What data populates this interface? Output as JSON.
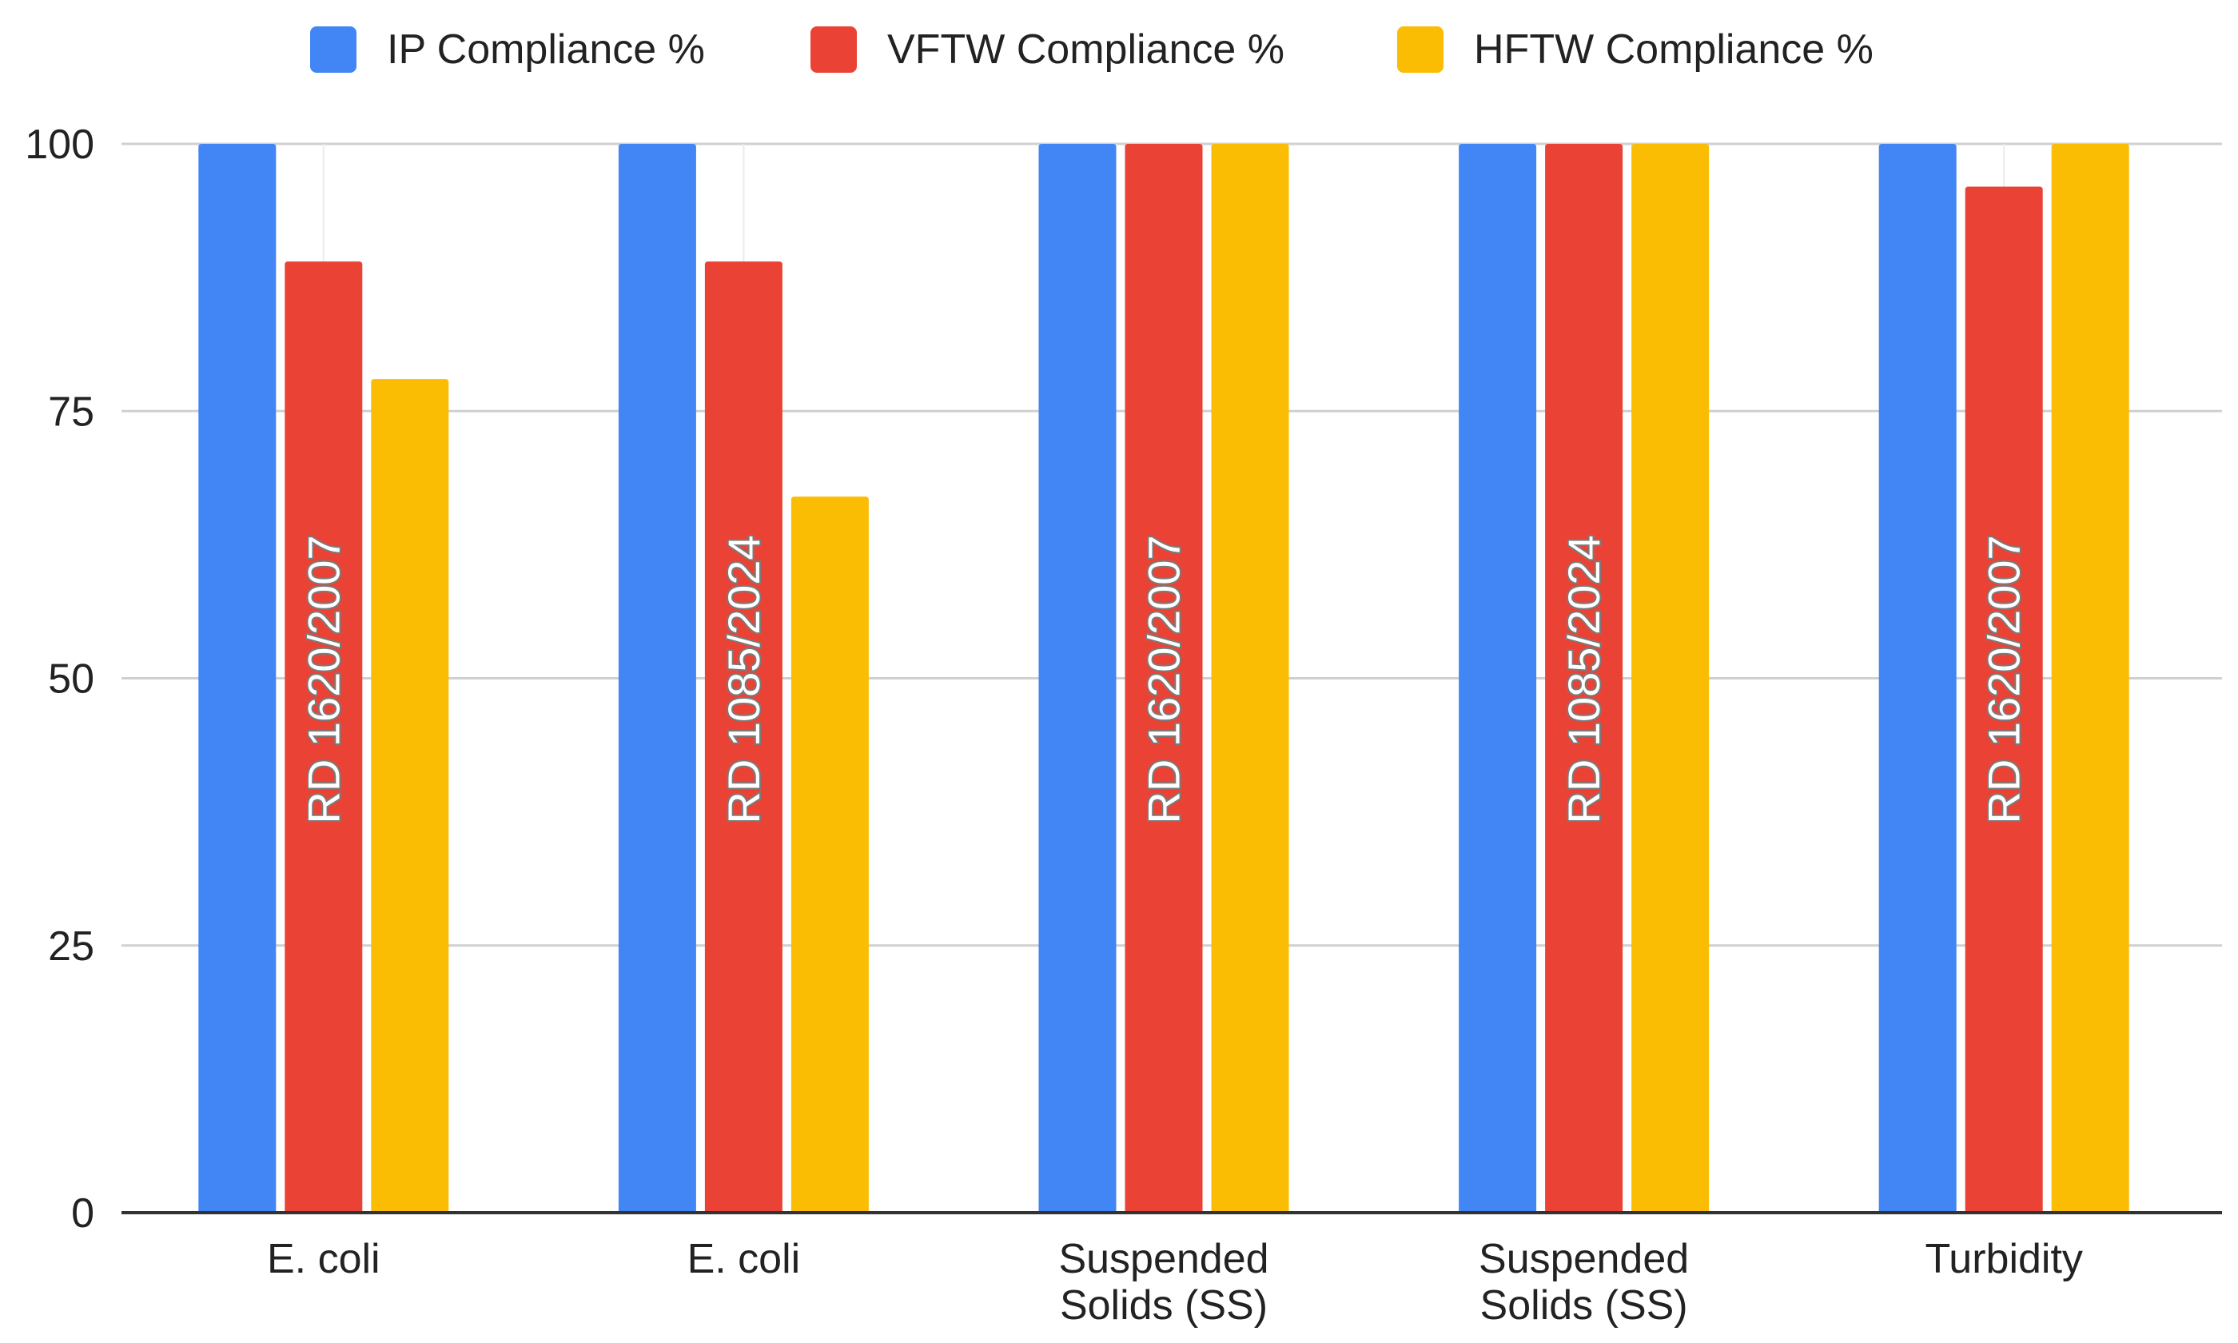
{
  "chart_data": {
    "type": "bar",
    "title": "",
    "xlabel": "",
    "ylabel": "",
    "ylim": [
      0,
      100
    ],
    "yticks": [
      0,
      25,
      50,
      75,
      100
    ],
    "grid": true,
    "legend_position": "top",
    "categories": [
      {
        "lines": [
          "E. coli"
        ],
        "note": "RD 1620/2007"
      },
      {
        "lines": [
          "E. coli"
        ],
        "note": "RD 1085/2024"
      },
      {
        "lines": [
          "Suspended",
          "Solids (SS)"
        ],
        "note": "RD 1620/2007"
      },
      {
        "lines": [
          "Suspended",
          "Solids (SS)"
        ],
        "note": "RD 1085/2024"
      },
      {
        "lines": [
          "Turbidity"
        ],
        "note": "RD 1620/2007"
      }
    ],
    "series": [
      {
        "name": "IP Compliance %",
        "color": "#4285F4",
        "values": [
          100,
          100,
          100,
          100,
          100
        ]
      },
      {
        "name": "VFTW Compliance %",
        "color": "#EA4335",
        "values": [
          89,
          89,
          100,
          100,
          96
        ]
      },
      {
        "name": "HFTW Compliance %",
        "color": "#FBBC04",
        "values": [
          78,
          67,
          100,
          100,
          100
        ]
      }
    ]
  }
}
